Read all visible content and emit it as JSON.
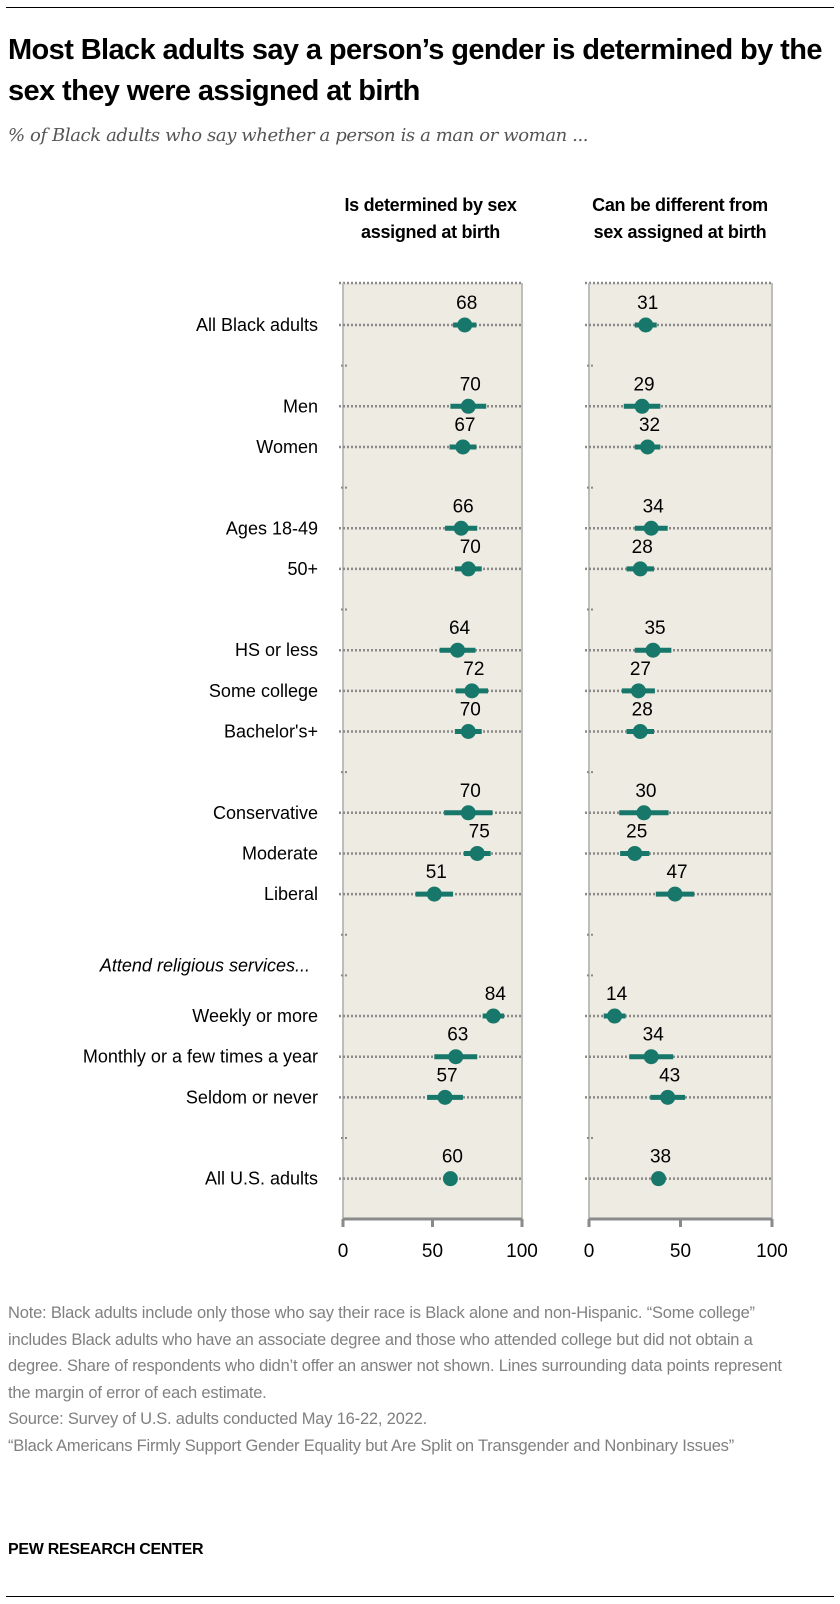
{
  "title": "Most Black adults say a person’s gender is determined by the sex they were assigned at birth",
  "subtitle": "% of Black adults who say whether a person is a man or woman ...",
  "colors": {
    "dot": "#17776a",
    "panel": "#edebe2",
    "grid": "#8a8a8a",
    "axis": "#8a8a8a"
  },
  "chart_data": {
    "type": "dot",
    "xlim": [
      0,
      100
    ],
    "xticks": [
      "0",
      "50",
      "100"
    ],
    "grid": "dotted row lines",
    "legend": "none",
    "panels": [
      "Is determined by sex assigned at birth",
      "Can be different from sex assigned at birth"
    ],
    "group_label": "Attend religious services...",
    "categories": [
      "All Black adults",
      "Men",
      "Women",
      "Ages 18-49",
      "50+",
      "HS or less",
      "Some college",
      "Bachelor's+",
      "Conservative",
      "Moderate",
      "Liberal",
      "Weekly or more",
      "Monthly or a few times a year",
      "Seldom or never",
      "All U.S. adults"
    ],
    "series": [
      {
        "name": "Is determined by sex assigned at birth",
        "values": [
          68,
          70,
          67,
          66,
          70,
          64,
          72,
          70,
          70,
          75,
          51,
          84,
          63,
          57,
          60
        ],
        "margin_of_error": [
          6.5,
          10,
          7.5,
          9,
          7.5,
          10,
          9,
          7.5,
          13.5,
          7.5,
          10.5,
          6,
          12,
          10,
          0
        ]
      },
      {
        "name": "Can be different from sex assigned at birth",
        "values": [
          31,
          29,
          32,
          34,
          28,
          35,
          27,
          28,
          30,
          25,
          47,
          14,
          34,
          43,
          38
        ],
        "margin_of_error": [
          6,
          10,
          7,
          9,
          7.5,
          10,
          9,
          7.5,
          13.5,
          8,
          10.5,
          6,
          12,
          9.5,
          0
        ]
      }
    ]
  },
  "notes": {
    "note": "Note: Black adults include only those who say their race is Black alone and non-Hispanic. “Some college” includes Black adults who have an associate degree and those who attended college but did not obtain a degree. Share of respondents who didn’t offer an answer not shown. Lines surrounding data points represent the margin of error of each estimate.",
    "source": "Source: Survey of U.S. adults conducted May 16-22, 2022.",
    "report": "“Black Americans Firmly Support Gender Equality but Are Split on Transgender and Nonbinary Issues”"
  },
  "brand": "PEW RESEARCH CENTER"
}
